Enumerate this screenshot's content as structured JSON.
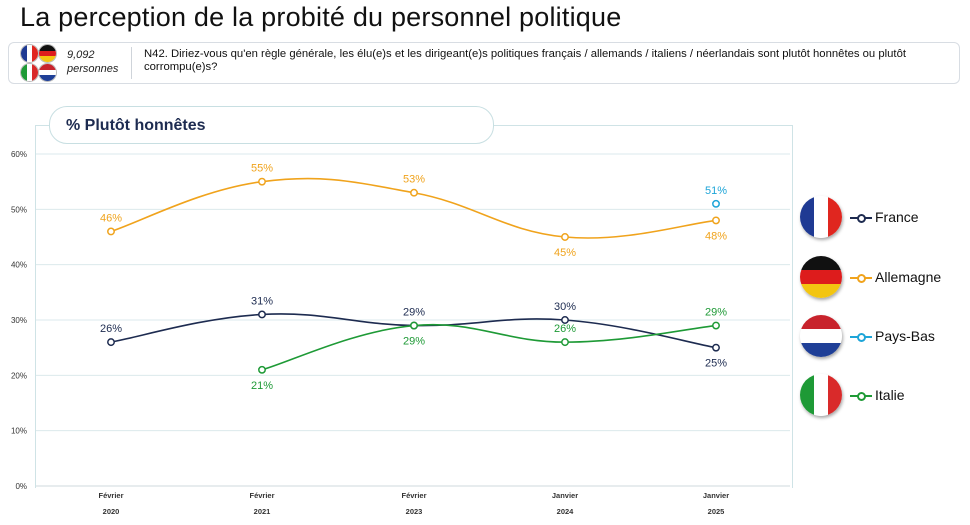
{
  "title": "La perception de la probité du personnel politique",
  "sample": {
    "count": "9,092",
    "unit": "personnes"
  },
  "question": "N42. Diriez-vous qu'en règle générale, les élu(e)s et les dirigeant(e)s politiques français / allemands / italiens / néerlandais sont plutôt honnêtes ou plutôt corrompu(e)s?",
  "chart_title": "% Plutôt honnêtes",
  "colors": {
    "france": "#1d2b50",
    "allemagne": "#f0a31c",
    "paysbas": "#1ea5d8",
    "italie": "#1e9a36",
    "grid": "#dbe9ec"
  },
  "chart_data": {
    "type": "line",
    "title": "% Plutôt honnêtes",
    "categories": [
      [
        "Février",
        "2020"
      ],
      [
        "Février",
        "2021"
      ],
      [
        "Février",
        "2023"
      ],
      [
        "Janvier",
        "2024"
      ],
      [
        "Janvier",
        "2025"
      ]
    ],
    "y_ticks": [
      "0%",
      "10%",
      "20%",
      "30%",
      "40%",
      "50%",
      "60%"
    ],
    "ylim": [
      0,
      60
    ],
    "series": [
      {
        "key": "allemagne",
        "name": "Allemagne",
        "values": [
          46,
          55,
          53,
          45,
          48
        ],
        "labels": [
          "46%",
          "55%",
          "53%",
          "45%",
          "48%"
        ],
        "label_pos": [
          "above",
          "above",
          "above",
          "below",
          "below"
        ]
      },
      {
        "key": "france",
        "name": "France",
        "values": [
          26,
          31,
          29,
          30,
          25
        ],
        "labels": [
          "26%",
          "31%",
          "29%",
          "30%",
          "25%"
        ],
        "label_pos": [
          "above",
          "above",
          "above",
          "above",
          "below"
        ]
      },
      {
        "key": "italie",
        "name": "Italie",
        "values": [
          null,
          21,
          29,
          26,
          29
        ],
        "labels": [
          null,
          "21%",
          "29%",
          "26%",
          "29%"
        ],
        "label_pos": [
          null,
          "below",
          "below",
          "above",
          "above"
        ]
      },
      {
        "key": "paysbas",
        "name": "Pays-Bas",
        "values": [
          null,
          null,
          null,
          null,
          51
        ],
        "labels": [
          null,
          null,
          null,
          null,
          "51%"
        ],
        "label_pos": [
          null,
          null,
          null,
          null,
          "above"
        ]
      }
    ]
  },
  "legend": [
    {
      "key": "france",
      "label": "France"
    },
    {
      "key": "allemagne",
      "label": "Allemagne"
    },
    {
      "key": "paysbas",
      "label": "Pays-Bas"
    },
    {
      "key": "italie",
      "label": "Italie"
    }
  ]
}
